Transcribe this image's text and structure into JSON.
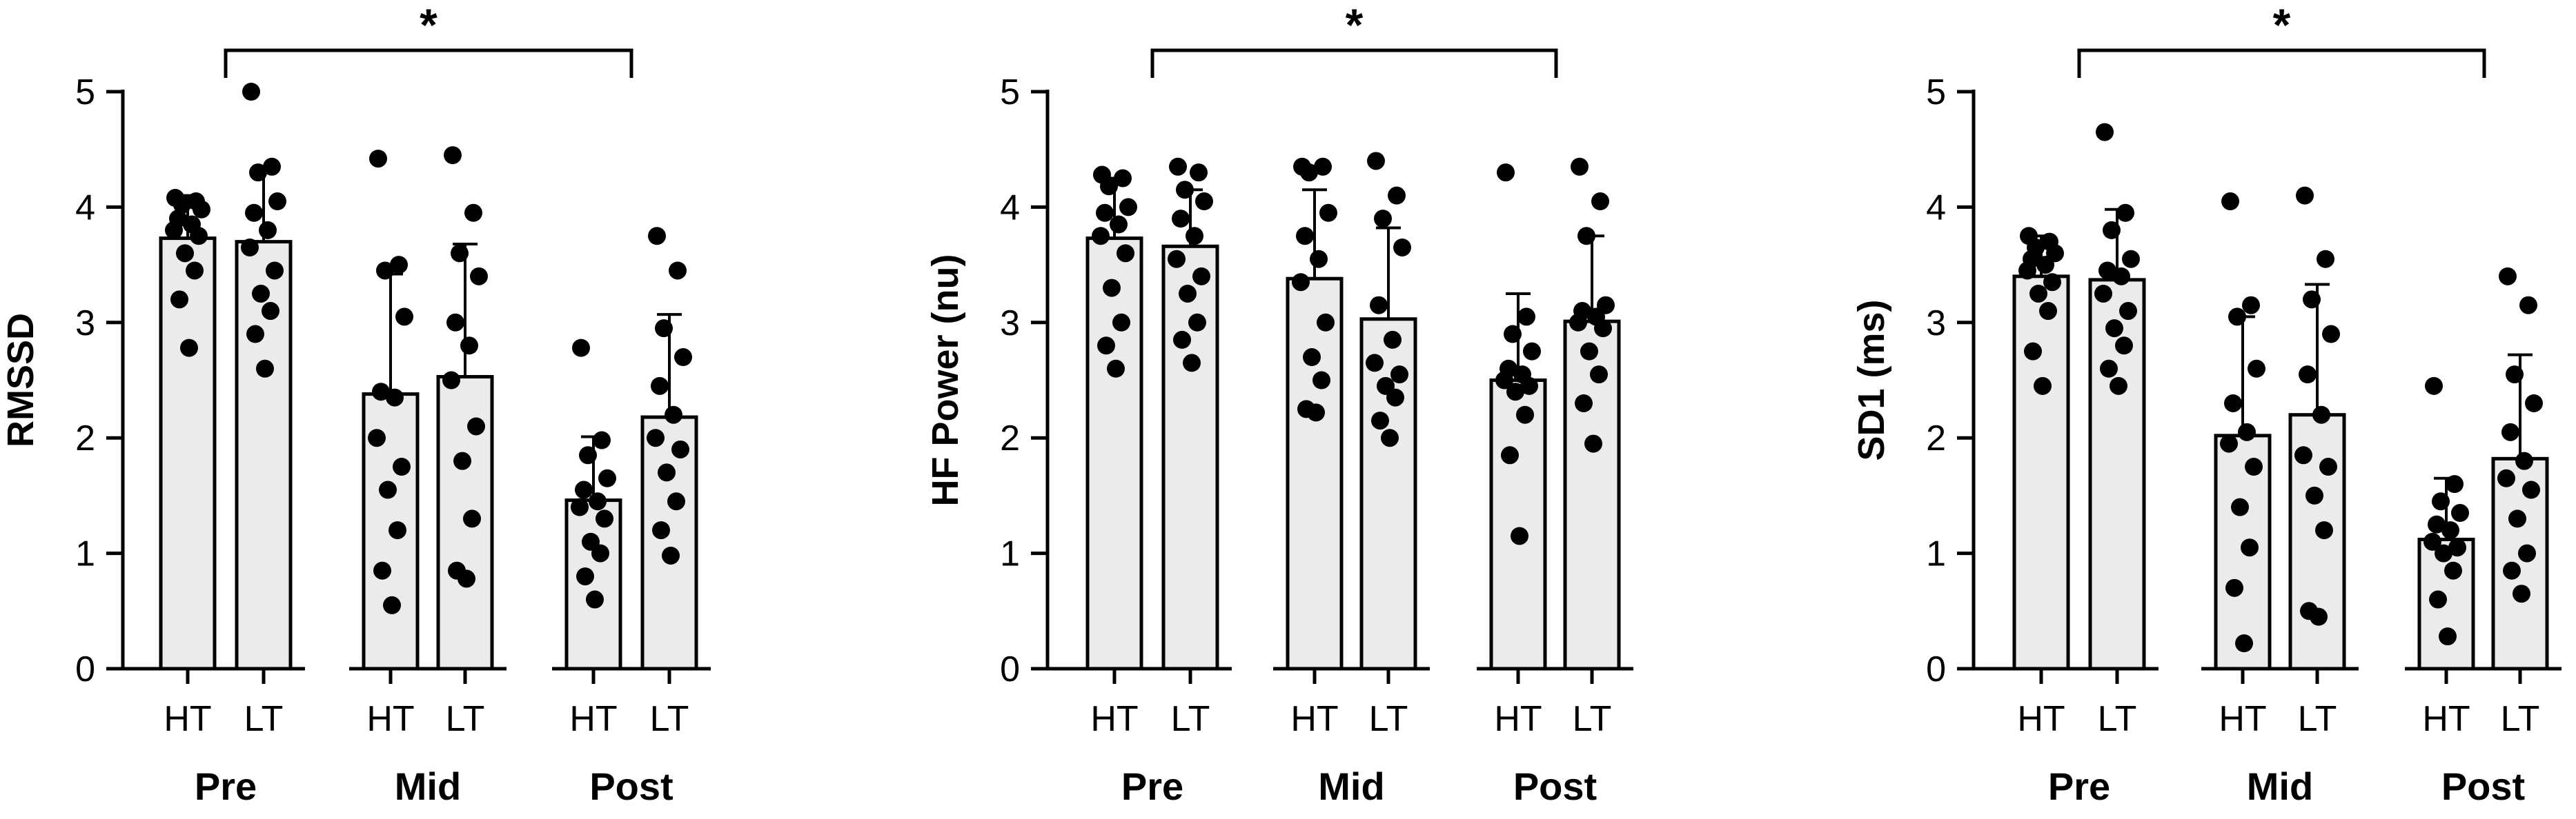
{
  "chart_data": [
    {
      "type": "bar",
      "ylabel": "RMSSD",
      "ylim": [
        0,
        5
      ],
      "yticks": [
        "0",
        "1",
        "2",
        "3",
        "4",
        "5"
      ],
      "categories": [
        "HT",
        "LT",
        "HT",
        "LT",
        "HT",
        "LT"
      ],
      "groups": [
        "Pre",
        "Mid",
        "Post"
      ],
      "significance": {
        "label": "*",
        "from": "Pre",
        "to": "Post"
      },
      "bar_color": "#ebebeb",
      "point_color": "#000000",
      "values": [
        3.73,
        3.7,
        2.38,
        2.53,
        1.46,
        2.18
      ],
      "error_upper": [
        4.1,
        4.3,
        3.42,
        3.68,
        2.01,
        3.07
      ],
      "points": [
        [
          4.08,
          4.05,
          4.02,
          3.98,
          3.9,
          3.85,
          3.8,
          3.75,
          3.6,
          3.45,
          3.2,
          2.78
        ],
        [
          5.0,
          4.35,
          4.3,
          4.05,
          3.95,
          3.8,
          3.65,
          3.45,
          3.25,
          3.1,
          2.9,
          2.6
        ],
        [
          4.42,
          3.5,
          3.45,
          3.05,
          2.4,
          2.35,
          2.0,
          1.75,
          1.55,
          1.2,
          0.85,
          0.55
        ],
        [
          4.45,
          3.95,
          3.6,
          3.4,
          3.0,
          2.8,
          2.5,
          2.1,
          1.8,
          1.3,
          0.85,
          0.78
        ],
        [
          2.78,
          1.98,
          1.85,
          1.65,
          1.55,
          1.45,
          1.4,
          1.3,
          1.1,
          1.0,
          0.8,
          0.6
        ],
        [
          3.75,
          3.45,
          2.95,
          2.7,
          2.45,
          2.2,
          2.0,
          1.9,
          1.7,
          1.45,
          1.2,
          0.98
        ]
      ]
    },
    {
      "type": "bar",
      "ylabel": "HF Power (nu)",
      "ylim": [
        0,
        5
      ],
      "yticks": [
        "0",
        "1",
        "2",
        "3",
        "4",
        "5"
      ],
      "categories": [
        "HT",
        "LT",
        "HT",
        "LT",
        "HT",
        "LT"
      ],
      "groups": [
        "Pre",
        "Mid",
        "Post"
      ],
      "significance": {
        "label": "*",
        "from": "Pre",
        "to": "Post"
      },
      "bar_color": "#ebebeb",
      "point_color": "#000000",
      "values": [
        3.73,
        3.66,
        3.38,
        3.03,
        2.5,
        3.01
      ],
      "error_upper": [
        4.25,
        4.15,
        4.15,
        3.82,
        3.25,
        3.75
      ],
      "points": [
        [
          4.28,
          4.25,
          4.18,
          4.0,
          3.95,
          3.85,
          3.75,
          3.6,
          3.3,
          3.0,
          2.8,
          2.6
        ],
        [
          4.35,
          4.3,
          4.15,
          4.05,
          3.9,
          3.75,
          3.55,
          3.4,
          3.25,
          3.0,
          2.85,
          2.65
        ],
        [
          4.35,
          4.35,
          4.3,
          3.95,
          3.75,
          3.55,
          3.35,
          3.0,
          2.7,
          2.5,
          2.25,
          2.22
        ],
        [
          4.4,
          4.1,
          3.9,
          3.65,
          3.15,
          2.85,
          2.65,
          2.55,
          2.45,
          2.35,
          2.15,
          2.0
        ],
        [
          4.3,
          3.05,
          2.9,
          2.75,
          2.6,
          2.55,
          2.5,
          2.45,
          2.4,
          2.2,
          1.85,
          1.15
        ],
        [
          4.35,
          4.05,
          3.75,
          3.15,
          3.1,
          3.05,
          3.0,
          2.95,
          2.75,
          2.55,
          2.3,
          1.95
        ]
      ]
    },
    {
      "type": "bar",
      "ylabel": "SD1 (ms)",
      "ylim": [
        0,
        5
      ],
      "yticks": [
        "0",
        "1",
        "2",
        "3",
        "4",
        "5"
      ],
      "categories": [
        "HT",
        "LT",
        "HT",
        "LT",
        "HT",
        "LT"
      ],
      "groups": [
        "Pre",
        "Mid",
        "Post"
      ],
      "significance": {
        "label": "*",
        "from": "Pre",
        "to": "Post"
      },
      "bar_color": "#ebebeb",
      "point_color": "#000000",
      "values": [
        3.4,
        3.37,
        2.02,
        2.2,
        1.12,
        1.82
      ],
      "error_upper": [
        3.75,
        3.98,
        3.05,
        3.33,
        1.65,
        2.72
      ],
      "points": [
        [
          3.75,
          3.7,
          3.65,
          3.6,
          3.55,
          3.5,
          3.45,
          3.35,
          3.25,
          3.1,
          2.75,
          2.45
        ],
        [
          4.65,
          3.95,
          3.8,
          3.55,
          3.45,
          3.4,
          3.25,
          3.1,
          2.95,
          2.8,
          2.6,
          2.45
        ],
        [
          4.05,
          3.15,
          3.05,
          2.6,
          2.3,
          2.05,
          1.95,
          1.75,
          1.4,
          1.05,
          0.7,
          0.22
        ],
        [
          4.1,
          3.55,
          3.2,
          2.9,
          2.55,
          2.2,
          1.85,
          1.75,
          1.5,
          1.2,
          0.5,
          0.45
        ],
        [
          2.45,
          1.6,
          1.45,
          1.35,
          1.25,
          1.2,
          1.1,
          1.05,
          1.0,
          0.85,
          0.6,
          0.28
        ],
        [
          3.4,
          3.15,
          2.55,
          2.3,
          2.05,
          1.8,
          1.65,
          1.55,
          1.3,
          1.0,
          0.85,
          0.65
        ]
      ]
    }
  ]
}
